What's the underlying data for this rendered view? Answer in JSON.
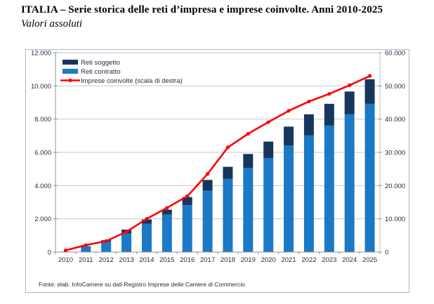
{
  "page": {
    "title": "ITALIA – Serie storica delle reti d’impresa e imprese coinvolte. Anni 2010-2025",
    "subtitle": "Valori assoluti",
    "source_note": "Fonte: elab. InfoCamere su dati Registro Imprese delle Camere di Commercio"
  },
  "colors": {
    "reti_soggetto": "#17365d",
    "reti_contratto": "#1b79c5",
    "imprese_line": "#fe0000",
    "gridline": "#c9c9c9",
    "plot_border": "#bcc1c7",
    "axis_line": "#8f959c",
    "text": "#1f2a3c"
  },
  "chart_data": {
    "type": "bar",
    "subtype": "stacked-bars-with-line",
    "categories": [
      "2010",
      "2011",
      "2012",
      "2013",
      "2014",
      "2015",
      "2016",
      "2017",
      "2018",
      "2019",
      "2020",
      "2021",
      "2022",
      "2023",
      "2024",
      "2025"
    ],
    "series": [
      {
        "name": "Reti soggetto",
        "role": "stack_top",
        "axis": "left",
        "color_key": "reti_soggetto",
        "values": [
          5,
          25,
          90,
          230,
          250,
          300,
          490,
          640,
          730,
          840,
          1000,
          1140,
          1270,
          1310,
          1370,
          1480
        ]
      },
      {
        "name": "Reti contratto",
        "role": "stack_bottom",
        "axis": "left",
        "color_key": "reti_contratto",
        "values": [
          25,
          330,
          620,
          1120,
          1710,
          2250,
          2820,
          3700,
          4400,
          5060,
          5650,
          6410,
          7020,
          7610,
          8290,
          8920
        ]
      },
      {
        "name": "Imprese coinvolte (scala di destra)",
        "role": "line",
        "axis": "right",
        "color_key": "imprese_line",
        "values": [
          500,
          2100,
          3300,
          6100,
          10000,
          13300,
          16800,
          23500,
          31500,
          35600,
          39100,
          42500,
          45300,
          47600,
          50200,
          53000
        ]
      }
    ],
    "left_axis": {
      "min": 0,
      "max": 12000,
      "step": 2000
    },
    "right_axis": {
      "min": 0,
      "max": 60000,
      "step": 10000
    },
    "grid": true,
    "legend_position": "top-left",
    "number_format": "it-thousands-dot"
  }
}
